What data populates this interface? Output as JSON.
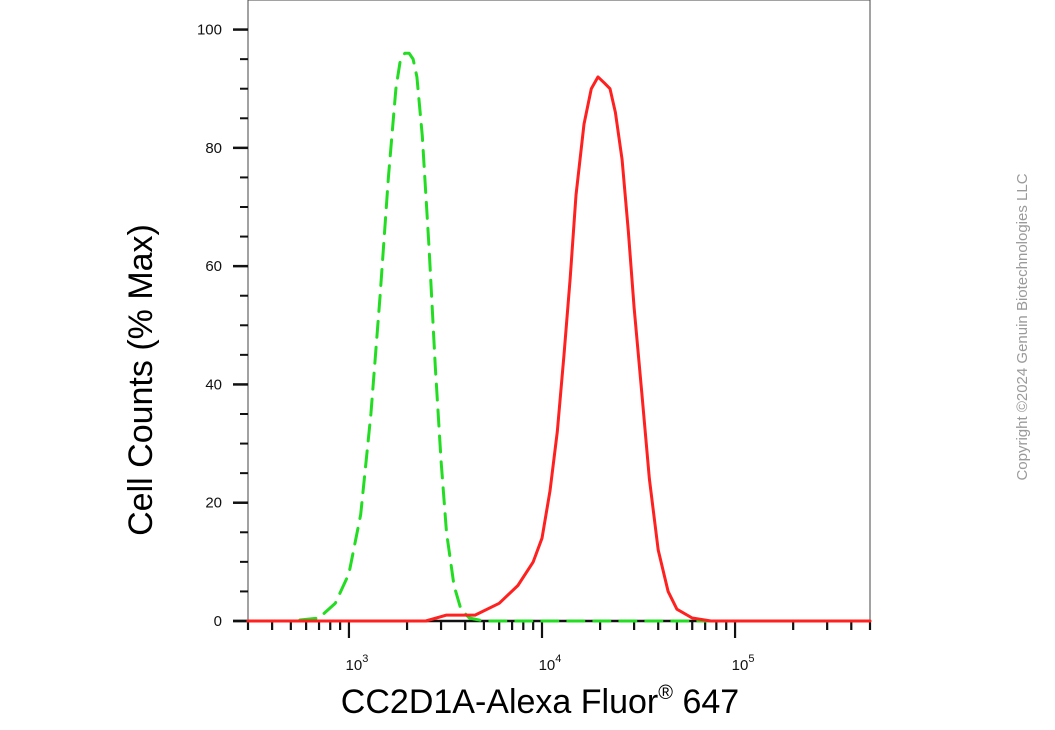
{
  "chart_data": {
    "type": "line",
    "title": "",
    "xlabel": "CC2D1A-Alexa Fluor",
    "xlabel_superscript": "®",
    "xlabel_suffix": " 647",
    "ylabel": "Cell Counts (% Max)",
    "x_scale": "log",
    "xlim": [
      300,
      500000
    ],
    "ylim": [
      0,
      105
    ],
    "y_ticks": [
      0,
      20,
      40,
      60,
      80,
      100
    ],
    "x_tick_labels": [
      {
        "value": 1000,
        "base": "10",
        "exp": "3"
      },
      {
        "value": 10000,
        "base": "10",
        "exp": "4"
      },
      {
        "value": 100000,
        "base": "10",
        "exp": "5"
      }
    ],
    "grid": false,
    "legend": "none",
    "series": [
      {
        "color": "#22dd22",
        "dash": "dashed",
        "x": [
          300,
          500,
          700,
          850,
          1000,
          1150,
          1300,
          1450,
          1600,
          1750,
          1850,
          1950,
          2050,
          2150,
          2250,
          2400,
          2600,
          2800,
          3000,
          3200,
          3500,
          3800,
          4200,
          5000,
          10000,
          100000,
          500000
        ],
        "y": [
          0,
          0,
          0.5,
          3,
          8,
          18,
          35,
          55,
          75,
          90,
          95,
          96,
          96,
          95,
          92,
          82,
          63,
          43,
          27,
          15,
          6,
          2,
          0.5,
          0,
          0,
          0,
          0
        ]
      },
      {
        "color": "#ff2020",
        "dash": "solid",
        "x": [
          300,
          1000,
          2500,
          3200,
          4500,
          6000,
          7500,
          9000,
          10000,
          11000,
          12000,
          13000,
          14000,
          15000,
          16500,
          18000,
          19500,
          21000,
          22500,
          24000,
          26000,
          28000,
          30000,
          33000,
          36000,
          40000,
          45000,
          50000,
          60000,
          75000,
          100000,
          500000
        ],
        "y": [
          0,
          0,
          0,
          1,
          1,
          3,
          6,
          10,
          14,
          22,
          32,
          45,
          58,
          72,
          84,
          90,
          92,
          91,
          90,
          86,
          78,
          66,
          53,
          38,
          24,
          12,
          5,
          2,
          0.5,
          0,
          0,
          0
        ]
      }
    ]
  },
  "watermark": "Copyright ©2024 Genuin Biotechnologies LLC"
}
